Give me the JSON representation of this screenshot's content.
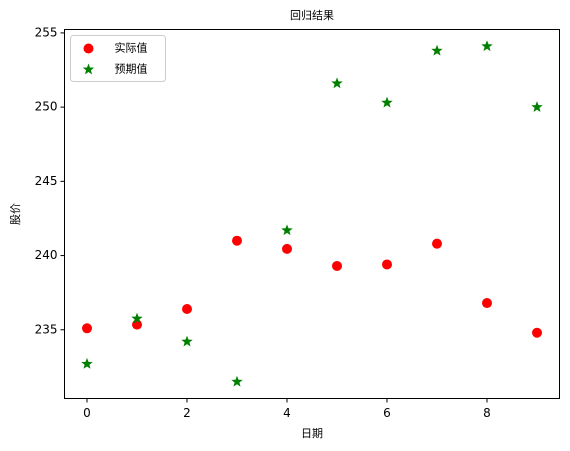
{
  "chart_data": {
    "type": "scatter",
    "title": "回归结果",
    "xlabel": "日期",
    "ylabel": "股价",
    "xlim": [
      -0.45,
      9.45
    ],
    "ylim": [
      230.37,
      255.23
    ],
    "xticks": [
      0,
      2,
      4,
      6,
      8
    ],
    "yticks": [
      235,
      240,
      245,
      250,
      255
    ],
    "grid": false,
    "legend": "upper left",
    "series": [
      {
        "name": "实际值",
        "color": "#ff0000",
        "marker": "o",
        "x": [
          0,
          1,
          2,
          3,
          4,
          5,
          6,
          7,
          8,
          9
        ],
        "values": [
          235.1,
          235.35,
          236.4,
          241.0,
          240.45,
          239.3,
          239.4,
          240.8,
          236.8,
          234.8
        ]
      },
      {
        "name": "预期值",
        "color": "#008000",
        "marker": "*",
        "x": [
          0,
          1,
          2,
          3,
          4,
          5,
          6,
          7,
          8,
          9
        ],
        "values": [
          232.7,
          235.75,
          234.2,
          231.5,
          241.7,
          251.6,
          250.3,
          253.8,
          254.1,
          250.0
        ]
      }
    ]
  }
}
